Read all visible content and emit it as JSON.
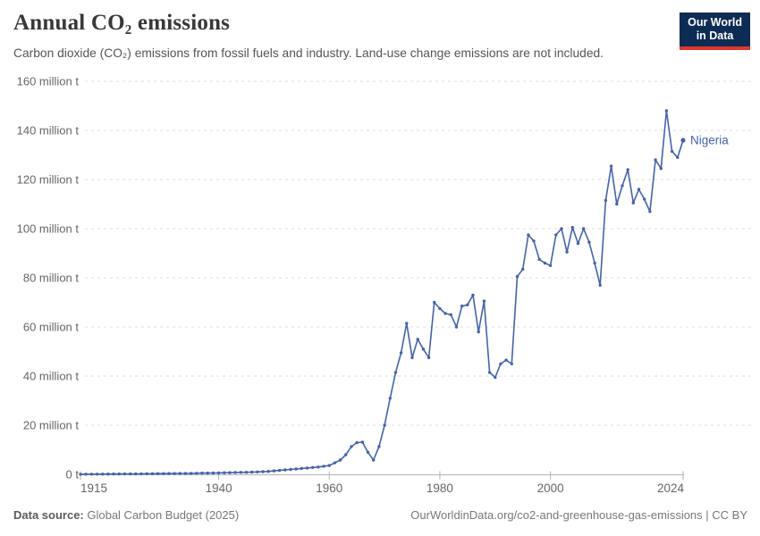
{
  "header": {
    "title": "Annual CO₂ emissions",
    "subtitle": "Carbon dioxide (CO₂) emissions from fossil fuels and industry. Land-use change emissions are not included.",
    "logo": {
      "line1": "Our World",
      "line2": "in Data"
    }
  },
  "footer": {
    "source_label": "Data source:",
    "source_value": " Global Carbon Budget (2025)",
    "credit": "OurWorldinData.org/co2-and-greenhouse-gas-emissions | CC BY"
  },
  "colors": {
    "line": "#4464a9",
    "grid": "#dcdcdc",
    "axis": "#b3b3b3",
    "tick_label": "#666666",
    "logo_bg": "#0d2c54",
    "logo_stripe": "#e0362c"
  },
  "chart_data": {
    "type": "line",
    "title": "Annual CO₂ emissions",
    "unit": "million t",
    "entity_label": "Nigeria",
    "grid": "horizontal dashed",
    "legend_position": "end-of-line label",
    "ylim": [
      0,
      160
    ],
    "y_ticks": [
      {
        "value": 0,
        "label": "0 t"
      },
      {
        "value": 20,
        "label": "20 million t"
      },
      {
        "value": 40,
        "label": "40 million t"
      },
      {
        "value": 60,
        "label": "60 million t"
      },
      {
        "value": 80,
        "label": "80 million t"
      },
      {
        "value": 100,
        "label": "100 million t"
      },
      {
        "value": 120,
        "label": "120 million t"
      },
      {
        "value": 140,
        "label": "140 million t"
      },
      {
        "value": 160,
        "label": "160 million t"
      }
    ],
    "x_ticks": [
      1915,
      1940,
      1960,
      1980,
      2000,
      2024
    ],
    "x": [
      1915,
      1916,
      1917,
      1918,
      1919,
      1920,
      1921,
      1922,
      1923,
      1924,
      1925,
      1926,
      1927,
      1928,
      1929,
      1930,
      1931,
      1932,
      1933,
      1934,
      1935,
      1936,
      1937,
      1938,
      1939,
      1940,
      1941,
      1942,
      1943,
      1944,
      1945,
      1946,
      1947,
      1948,
      1949,
      1950,
      1951,
      1952,
      1953,
      1954,
      1955,
      1956,
      1957,
      1958,
      1959,
      1960,
      1961,
      1962,
      1963,
      1964,
      1965,
      1966,
      1967,
      1968,
      1969,
      1970,
      1971,
      1972,
      1973,
      1974,
      1975,
      1976,
      1977,
      1978,
      1979,
      1980,
      1981,
      1982,
      1983,
      1984,
      1985,
      1986,
      1987,
      1988,
      1989,
      1990,
      1991,
      1992,
      1993,
      1994,
      1995,
      1996,
      1997,
      1998,
      1999,
      2000,
      2001,
      2002,
      2003,
      2004,
      2005,
      2006,
      2007,
      2008,
      2009,
      2010,
      2011,
      2012,
      2013,
      2014,
      2015,
      2016,
      2017,
      2018,
      2019,
      2020,
      2021,
      2022,
      2023,
      2024
    ],
    "series": [
      {
        "name": "Nigeria",
        "values": [
          0.05,
          0.07,
          0.08,
          0.09,
          0.1,
          0.12,
          0.13,
          0.15,
          0.17,
          0.18,
          0.2,
          0.22,
          0.25,
          0.27,
          0.3,
          0.3,
          0.32,
          0.33,
          0.35,
          0.38,
          0.4,
          0.45,
          0.5,
          0.52,
          0.55,
          0.6,
          0.65,
          0.7,
          0.75,
          0.8,
          0.85,
          0.9,
          1,
          1.1,
          1.2,
          1.4,
          1.6,
          1.8,
          2,
          2.2,
          2.4,
          2.6,
          2.8,
          3,
          3.3,
          3.6,
          4.7,
          5.8,
          8,
          11.3,
          12.9,
          13.1,
          9,
          5.8,
          11.3,
          20,
          31,
          41.5,
          49.5,
          61.5,
          47.5,
          55,
          51,
          47.5,
          70,
          67.5,
          65.5,
          65,
          60,
          68.5,
          69,
          73,
          58,
          70.5,
          41.5,
          39.5,
          45,
          46.5,
          45,
          80.5,
          83.5,
          97.5,
          95,
          87.5,
          86,
          85,
          97.5,
          100,
          90.5,
          100.5,
          94,
          100,
          94.5,
          86,
          77,
          111.5,
          125.5,
          110,
          117.5,
          124,
          110.5,
          116,
          112,
          107,
          128,
          124.5,
          148,
          131.5,
          129,
          136
        ]
      }
    ]
  }
}
